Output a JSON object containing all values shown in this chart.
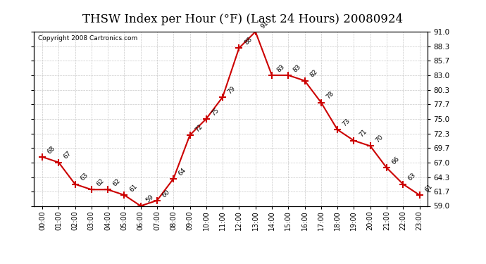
{
  "title": "THSW Index per Hour (°F) (Last 24 Hours) 20080924",
  "copyright": "Copyright 2008 Cartronics.com",
  "hours": [
    0,
    1,
    2,
    3,
    4,
    5,
    6,
    7,
    8,
    9,
    10,
    11,
    12,
    13,
    14,
    15,
    16,
    17,
    18,
    19,
    20,
    21,
    22,
    23
  ],
  "values": [
    68,
    67,
    63,
    62,
    62,
    61,
    59,
    60,
    64,
    72,
    75,
    79,
    88,
    91,
    83,
    83,
    82,
    78,
    73,
    71,
    70,
    66,
    63,
    61
  ],
  "x_labels": [
    "00:00",
    "01:00",
    "02:00",
    "03:00",
    "04:00",
    "05:00",
    "06:00",
    "07:00",
    "08:00",
    "09:00",
    "10:00",
    "11:00",
    "12:00",
    "13:00",
    "14:00",
    "15:00",
    "16:00",
    "17:00",
    "18:00",
    "19:00",
    "20:00",
    "21:00",
    "22:00",
    "23:00"
  ],
  "y_ticks": [
    59.0,
    61.7,
    64.3,
    67.0,
    69.7,
    72.3,
    75.0,
    77.7,
    80.3,
    83.0,
    85.7,
    88.3,
    91.0
  ],
  "ylim": [
    59.0,
    91.0
  ],
  "line_color": "#cc0000",
  "marker_color": "#cc0000",
  "bg_color": "#ffffff",
  "grid_color": "#bbbbbb",
  "title_fontsize": 12,
  "label_fontsize": 7.5,
  "copyright_fontsize": 6.5
}
